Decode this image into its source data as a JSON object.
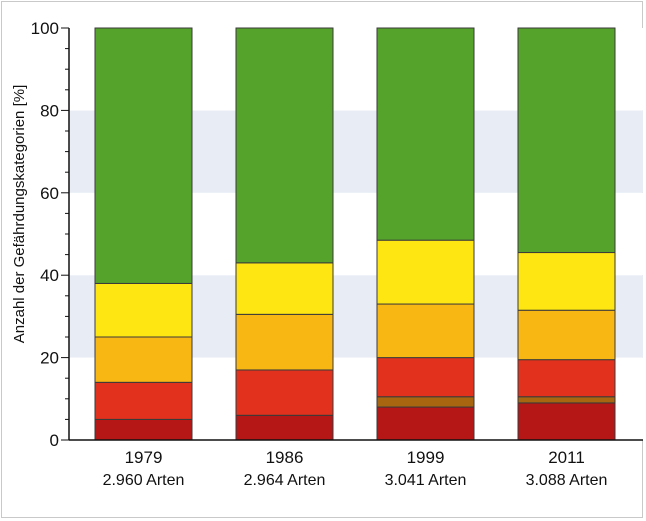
{
  "chart_data": {
    "type": "bar",
    "stacked": true,
    "title": "",
    "ylabel": "Anzahl der Gefährdungskategorien [%]",
    "xlabel": "",
    "ylim": [
      0,
      100
    ],
    "yticks": [
      0,
      20,
      40,
      60,
      80,
      100
    ],
    "grid": "alternating horizontal bands",
    "categories": [
      "1979",
      "1986",
      "1999",
      "2011"
    ],
    "sublabels": [
      "2.960 Arten",
      "2.964 Arten",
      "3.041 Arten",
      "3.088 Arten"
    ],
    "series": [
      {
        "color": "#b51616",
        "values": [
          5,
          6,
          8,
          9
        ]
      },
      {
        "color": "#a7660f",
        "values": [
          0,
          0,
          2.5,
          1.5
        ]
      },
      {
        "color": "#e2321d",
        "values": [
          9,
          11,
          9.5,
          9
        ]
      },
      {
        "color": "#f9b714",
        "values": [
          11,
          13.5,
          13,
          12
        ]
      },
      {
        "color": "#fde612",
        "values": [
          13,
          12.5,
          15.5,
          14
        ]
      },
      {
        "color": "#56a32c",
        "values": [
          62,
          57,
          51.5,
          54.5
        ]
      }
    ]
  }
}
